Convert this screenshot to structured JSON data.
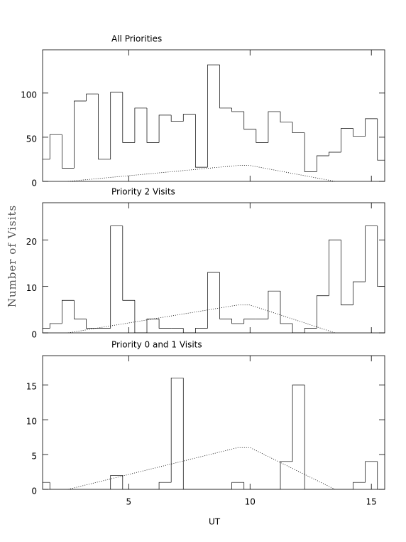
{
  "chart_data": [
    {
      "type": "histogram",
      "title": "All Priorities",
      "ylabel": "Number of Visits",
      "bins": [
        1.25,
        1.75,
        2.25,
        2.75,
        3.25,
        3.75,
        4.25,
        4.75,
        5.25,
        5.75,
        6.25,
        6.75,
        7.25,
        7.75,
        8.25,
        8.75,
        9.25,
        9.75,
        10.25,
        10.75,
        11.25,
        11.75,
        12.25,
        12.75,
        13.25,
        13.75,
        14.25,
        14.75,
        15.25,
        15.75
      ],
      "values": [
        25,
        53,
        15,
        91,
        99,
        25,
        101,
        44,
        83,
        44,
        75,
        68,
        76,
        16,
        132,
        83,
        79,
        59,
        44,
        79,
        67,
        55,
        11,
        29,
        33,
        60,
        51,
        71,
        24
      ],
      "line": {
        "x": [
          2.5,
          9.5,
          10,
          13.5
        ],
        "values": [
          0,
          18,
          18,
          0
        ]
      },
      "xlim": [
        1.45,
        15.55
      ],
      "xticks": [
        5,
        10,
        15
      ],
      "show_xtick_labels": false,
      "ylim": [
        0,
        149
      ],
      "yticks": [
        0,
        50,
        100
      ]
    },
    {
      "type": "histogram",
      "title": "Priority 2 Visits",
      "bins": [
        1.25,
        1.75,
        2.25,
        2.75,
        3.25,
        3.75,
        4.25,
        4.75,
        5.25,
        5.75,
        6.25,
        6.75,
        7.25,
        7.75,
        8.25,
        8.75,
        9.25,
        9.75,
        10.25,
        10.75,
        11.25,
        11.75,
        12.25,
        12.75,
        13.25,
        13.75,
        14.25,
        14.75,
        15.25,
        15.75
      ],
      "values": [
        1,
        2,
        7,
        3,
        1,
        1,
        23,
        7,
        0,
        3,
        1,
        1,
        0,
        1,
        13,
        3,
        2,
        3,
        3,
        9,
        2,
        0,
        1,
        8,
        20,
        6,
        11,
        23,
        10
      ],
      "line": {
        "x": [
          2.5,
          9.5,
          10,
          13.5
        ],
        "values": [
          0,
          6,
          6,
          0
        ]
      },
      "xlim": [
        1.45,
        15.55
      ],
      "xticks": [
        5,
        10,
        15
      ],
      "show_xtick_labels": false,
      "ylim": [
        0,
        28
      ],
      "yticks": [
        0,
        10,
        20
      ]
    },
    {
      "type": "histogram",
      "title": "Priority 0 and 1 Visits",
      "xlabel": "UT",
      "bins": [
        1.25,
        1.75,
        2.25,
        2.75,
        3.25,
        3.75,
        4.25,
        4.75,
        5.25,
        5.75,
        6.25,
        6.75,
        7.25,
        7.75,
        8.25,
        8.75,
        9.25,
        9.75,
        10.25,
        10.75,
        11.25,
        11.75,
        12.25,
        12.75,
        13.25,
        13.75,
        14.25,
        14.75,
        15.25,
        15.75
      ],
      "values": [
        1,
        0,
        0,
        0,
        0,
        0,
        2,
        0,
        0,
        0,
        1,
        16,
        0,
        0,
        0,
        0,
        1,
        0,
        0,
        0,
        4,
        15,
        0,
        0,
        0,
        0,
        1,
        4,
        0
      ],
      "line": {
        "x": [
          2.5,
          9.5,
          10,
          13.5
        ],
        "values": [
          0,
          6,
          6,
          0
        ]
      },
      "xlim": [
        1.45,
        15.55
      ],
      "xticks": [
        5,
        10,
        15
      ],
      "show_xtick_labels": true,
      "ylim": [
        0,
        19.2
      ],
      "yticks": [
        0,
        5,
        10,
        15
      ]
    }
  ]
}
